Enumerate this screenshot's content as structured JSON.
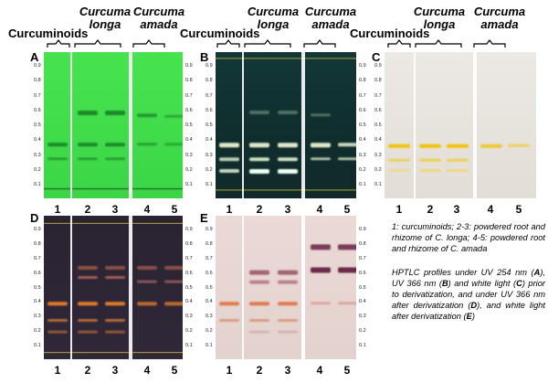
{
  "groups": {
    "curcuminoids": "Curcuminoids",
    "longa": "Curcuma longa",
    "longa_l1": "Curcuma",
    "longa_l2": "longa",
    "amada_l1": "Curcuma",
    "amada_l2": "amada"
  },
  "panels": [
    "A",
    "B",
    "C",
    "D",
    "E"
  ],
  "lanes": [
    "1",
    "2",
    "3",
    "4",
    "5"
  ],
  "rf_ticks": [
    "0.9",
    "0.8",
    "0.7",
    "0.6",
    "0.5",
    "0.4",
    "0.3",
    "0.2",
    "0.1"
  ],
  "legend": {
    "lanes_text": "1: curcuminoids; 2-3: powdered root and rhizome of C. longa; 4-5: powdered root and rhizome of C. amada",
    "desc_1": "HPTLC profiles under UV 254 nm (",
    "A": "A",
    "desc_2": "), UV 366 nm (",
    "B": "B",
    "desc_3": ") and white light (",
    "C": "C",
    "desc_4": ") prior to derivatization, and under UV 366 nm after derivatization (",
    "D": "D",
    "desc_5": "), and white light after derivatization (",
    "E": "E",
    "desc_6": ")"
  },
  "colors": {
    "A_bg": "#3ddc4a",
    "B_bg": "#0e2a2a",
    "C_bg": "#e6e2dc",
    "D_bg": "#2d2535",
    "E_bg": "#e7d6d4"
  }
}
